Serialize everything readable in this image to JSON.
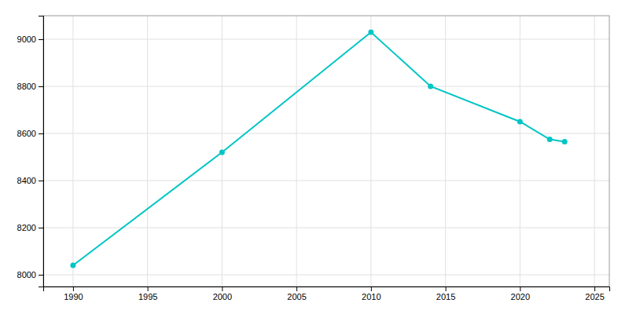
{
  "chart_data": {
    "type": "line",
    "x": [
      1990,
      2000,
      2010,
      2014,
      2020,
      2022,
      2023
    ],
    "values": [
      8040,
      8520,
      9030,
      8800,
      8650,
      8575,
      8565
    ],
    "color": "#00C5C5",
    "marker": "circle",
    "xlim": [
      1988,
      2026
    ],
    "ylim": [
      7950,
      9100
    ],
    "xticks": [
      1990,
      1995,
      2000,
      2005,
      2010,
      2015,
      2020,
      2025
    ],
    "yticks": [
      8000,
      8200,
      8400,
      8600,
      8800,
      9000
    ],
    "grid": true
  }
}
